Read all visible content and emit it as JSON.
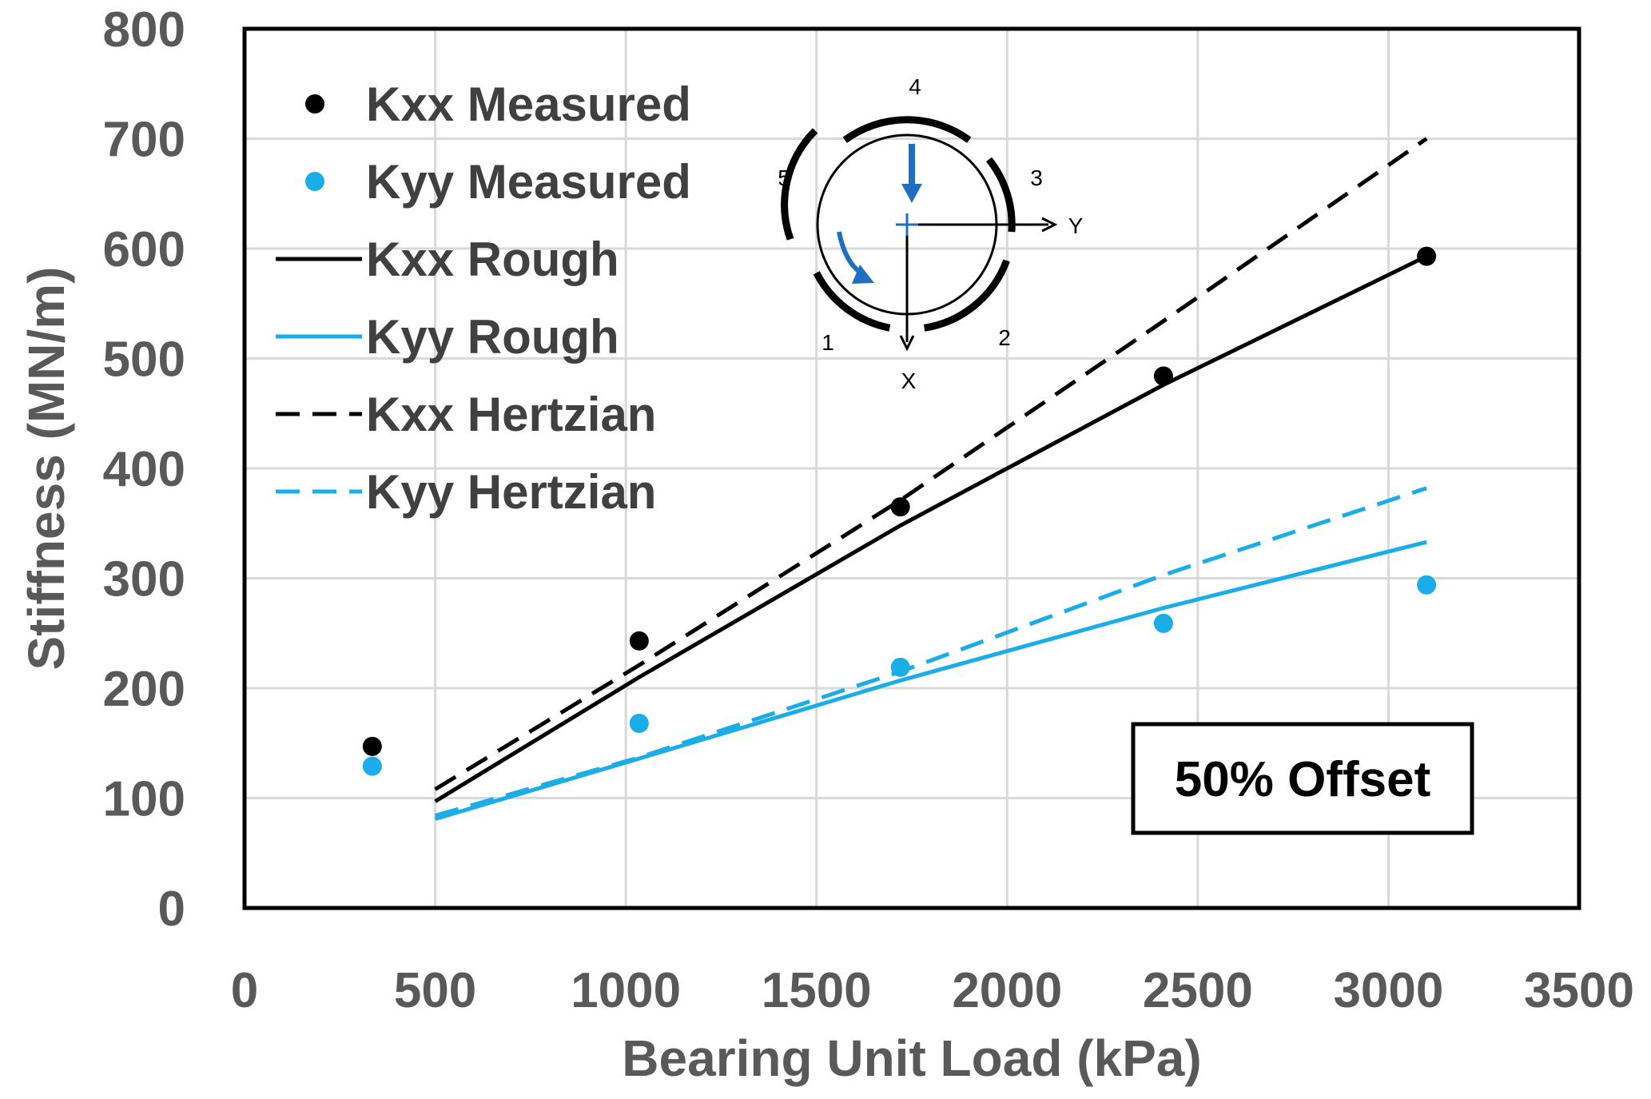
{
  "colors": {
    "black": "#000000",
    "blue": "#1aade8",
    "arrow_blue": "#1e6fc0",
    "grid": "#d9d9d9",
    "tick": "#595959"
  },
  "chart_data": {
    "type": "scatter",
    "title": "",
    "xlabel": "Bearing Unit Load (kPa)",
    "ylabel": "Stiffness (MN/m)",
    "xlim": [
      0,
      3500
    ],
    "ylim": [
      0,
      800
    ],
    "x_ticks": [
      0,
      500,
      1000,
      1500,
      2000,
      2500,
      3000,
      3500
    ],
    "y_ticks": [
      0,
      100,
      200,
      300,
      400,
      500,
      600,
      700,
      800
    ],
    "grid": true,
    "legend_position": "top-left",
    "series": [
      {
        "name": "Kxx Measured",
        "kind": "marker",
        "color": "#000000",
        "x": [
          335,
          1035,
          1720,
          2410,
          3100
        ],
        "y": [
          147,
          243,
          365,
          484,
          593
        ]
      },
      {
        "name": "Kyy Measured",
        "kind": "marker",
        "color": "#1aade8",
        "x": [
          335,
          1035,
          1720,
          2410,
          3100
        ],
        "y": [
          129,
          168,
          219,
          259,
          294
        ]
      },
      {
        "name": "Kxx Rough",
        "kind": "line",
        "dash": "solid",
        "color": "#000000",
        "x": [
          500,
          1035,
          1720,
          2410,
          3100
        ],
        "y": [
          97,
          210,
          348,
          476,
          593
        ]
      },
      {
        "name": "Kyy Rough",
        "kind": "line",
        "dash": "solid",
        "color": "#1aade8",
        "x": [
          500,
          1035,
          1720,
          2410,
          3100
        ],
        "y": [
          81,
          136,
          207,
          273,
          333
        ]
      },
      {
        "name": "Kxx Hertzian",
        "kind": "line",
        "dash": "dashed",
        "color": "#000000",
        "x": [
          500,
          1035,
          1720,
          2410,
          3100
        ],
        "y": [
          108,
          221,
          371,
          534,
          700
        ]
      },
      {
        "name": "Kyy Hertzian",
        "kind": "line",
        "dash": "dashed",
        "color": "#1aade8",
        "x": [
          500,
          1035,
          1720,
          2410,
          3100
        ],
        "y": [
          84,
          137,
          215,
          303,
          382
        ]
      }
    ],
    "annotation": "50% Offset",
    "inset_diagram": {
      "pad_labels": [
        "1",
        "2",
        "3",
        "4",
        "5"
      ],
      "axis_labels": [
        "X",
        "Y"
      ]
    }
  }
}
